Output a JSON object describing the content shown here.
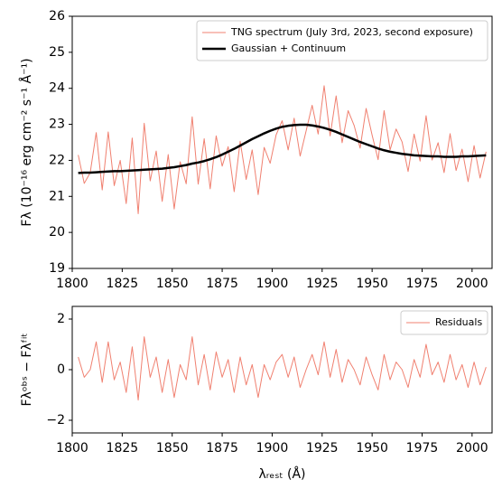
{
  "chart_data": [
    {
      "type": "line",
      "ylabel": "Fλ (10⁻¹⁶ erg cm⁻² s⁻¹ Å⁻¹)",
      "xlim": [
        1800,
        2010
      ],
      "xticks": [
        1800,
        1825,
        1850,
        1875,
        1900,
        1925,
        1950,
        1975,
        2000
      ],
      "ylim": [
        19,
        26
      ],
      "yticks": [
        19,
        20,
        21,
        22,
        23,
        24,
        25,
        26
      ],
      "legend": "upper right",
      "x": [
        1803,
        1806,
        1809,
        1812,
        1815,
        1818,
        1821,
        1824,
        1827,
        1830,
        1833,
        1836,
        1839,
        1842,
        1845,
        1848,
        1851,
        1854,
        1857,
        1860,
        1863,
        1866,
        1869,
        1872,
        1875,
        1878,
        1881,
        1884,
        1887,
        1890,
        1893,
        1896,
        1899,
        1902,
        1905,
        1908,
        1911,
        1914,
        1917,
        1920,
        1923,
        1926,
        1929,
        1932,
        1935,
        1938,
        1941,
        1944,
        1947,
        1950,
        1953,
        1956,
        1959,
        1962,
        1965,
        1968,
        1971,
        1974,
        1977,
        1980,
        1983,
        1986,
        1989,
        1992,
        1995,
        1998,
        2001,
        2004,
        2007
      ],
      "series": [
        {
          "name": "TNG spectrum (July 3rd, 2023, second exposure)",
          "color": "#f08070",
          "width": 1,
          "values": [
            22.15,
            21.36,
            21.66,
            22.77,
            21.18,
            22.79,
            21.3,
            22.0,
            20.8,
            22.62,
            20.52,
            23.03,
            21.43,
            22.26,
            20.86,
            22.16,
            20.65,
            21.96,
            21.35,
            23.21,
            21.34,
            22.6,
            21.21,
            22.68,
            21.84,
            22.38,
            21.13,
            22.53,
            21.47,
            22.29,
            21.05,
            22.36,
            21.92,
            22.71,
            23.1,
            22.29,
            23.17,
            22.12,
            22.82,
            23.53,
            22.73,
            24.07,
            22.68,
            23.79,
            22.49,
            23.38,
            22.97,
            22.34,
            23.44,
            22.7,
            22.02,
            23.38,
            22.29,
            22.87,
            22.51,
            21.69,
            22.73,
            21.98,
            23.24,
            22.01,
            22.49,
            21.66,
            22.74,
            21.72,
            22.31,
            21.41,
            22.41,
            21.51,
            22.24
          ]
        },
        {
          "name": "Gaussian + Continuum",
          "color": "#000000",
          "width": 2.5,
          "values": [
            21.65,
            21.66,
            21.66,
            21.67,
            21.68,
            21.69,
            21.7,
            21.7,
            21.71,
            21.72,
            21.73,
            21.74,
            21.75,
            21.76,
            21.77,
            21.79,
            21.81,
            21.84,
            21.87,
            21.91,
            21.94,
            21.98,
            22.03,
            22.09,
            22.16,
            22.24,
            22.32,
            22.41,
            22.5,
            22.59,
            22.67,
            22.75,
            22.82,
            22.88,
            22.93,
            22.96,
            22.98,
            22.99,
            22.99,
            22.97,
            22.94,
            22.9,
            22.85,
            22.79,
            22.72,
            22.65,
            22.58,
            22.51,
            22.45,
            22.39,
            22.33,
            22.28,
            22.24,
            22.21,
            22.18,
            22.16,
            22.14,
            22.13,
            22.12,
            22.11,
            22.11,
            22.1,
            22.1,
            22.1,
            22.11,
            22.11,
            22.12,
            22.13,
            22.14
          ]
        }
      ]
    },
    {
      "type": "line",
      "ylabel": "Fλᵒᵇˢ − Fλᶠⁱᵗ",
      "xlabel": "λᵣₑₛₜ (Å)",
      "xlim": [
        1800,
        2010
      ],
      "xticks": [
        1800,
        1825,
        1850,
        1875,
        1900,
        1925,
        1950,
        1975,
        2000
      ],
      "ylim": [
        -2.5,
        2.5
      ],
      "yticks": [
        {
          "value": -2,
          "label": "−2"
        },
        0,
        2
      ],
      "legend": "upper right",
      "x": [
        1803,
        1806,
        1809,
        1812,
        1815,
        1818,
        1821,
        1824,
        1827,
        1830,
        1833,
        1836,
        1839,
        1842,
        1845,
        1848,
        1851,
        1854,
        1857,
        1860,
        1863,
        1866,
        1869,
        1872,
        1875,
        1878,
        1881,
        1884,
        1887,
        1890,
        1893,
        1896,
        1899,
        1902,
        1905,
        1908,
        1911,
        1914,
        1917,
        1920,
        1923,
        1926,
        1929,
        1932,
        1935,
        1938,
        1941,
        1944,
        1947,
        1950,
        1953,
        1956,
        1959,
        1962,
        1965,
        1968,
        1971,
        1974,
        1977,
        1980,
        1983,
        1986,
        1989,
        1992,
        1995,
        1998,
        2001,
        2004,
        2007
      ],
      "series": [
        {
          "name": "Residuals",
          "color": "#f08070",
          "width": 1,
          "values": [
            0.5,
            -0.3,
            0.0,
            1.1,
            -0.5,
            1.1,
            -0.4,
            0.3,
            -0.9,
            0.9,
            -1.2,
            1.3,
            -0.3,
            0.5,
            -0.9,
            0.4,
            -1.1,
            0.2,
            -0.4,
            1.3,
            -0.6,
            0.6,
            -0.8,
            0.7,
            -0.3,
            0.4,
            -0.9,
            0.5,
            -0.6,
            0.2,
            -1.1,
            0.2,
            -0.4,
            0.3,
            0.6,
            -0.3,
            0.5,
            -0.7,
            0.0,
            0.6,
            -0.2,
            1.1,
            -0.3,
            0.8,
            -0.5,
            0.4,
            0.0,
            -0.6,
            0.5,
            -0.2,
            -0.8,
            0.6,
            -0.4,
            0.3,
            0.0,
            -0.7,
            0.4,
            -0.3,
            1.0,
            -0.2,
            0.3,
            -0.5,
            0.6,
            -0.4,
            0.2,
            -0.7,
            0.3,
            -0.6,
            0.1
          ]
        }
      ]
    }
  ]
}
